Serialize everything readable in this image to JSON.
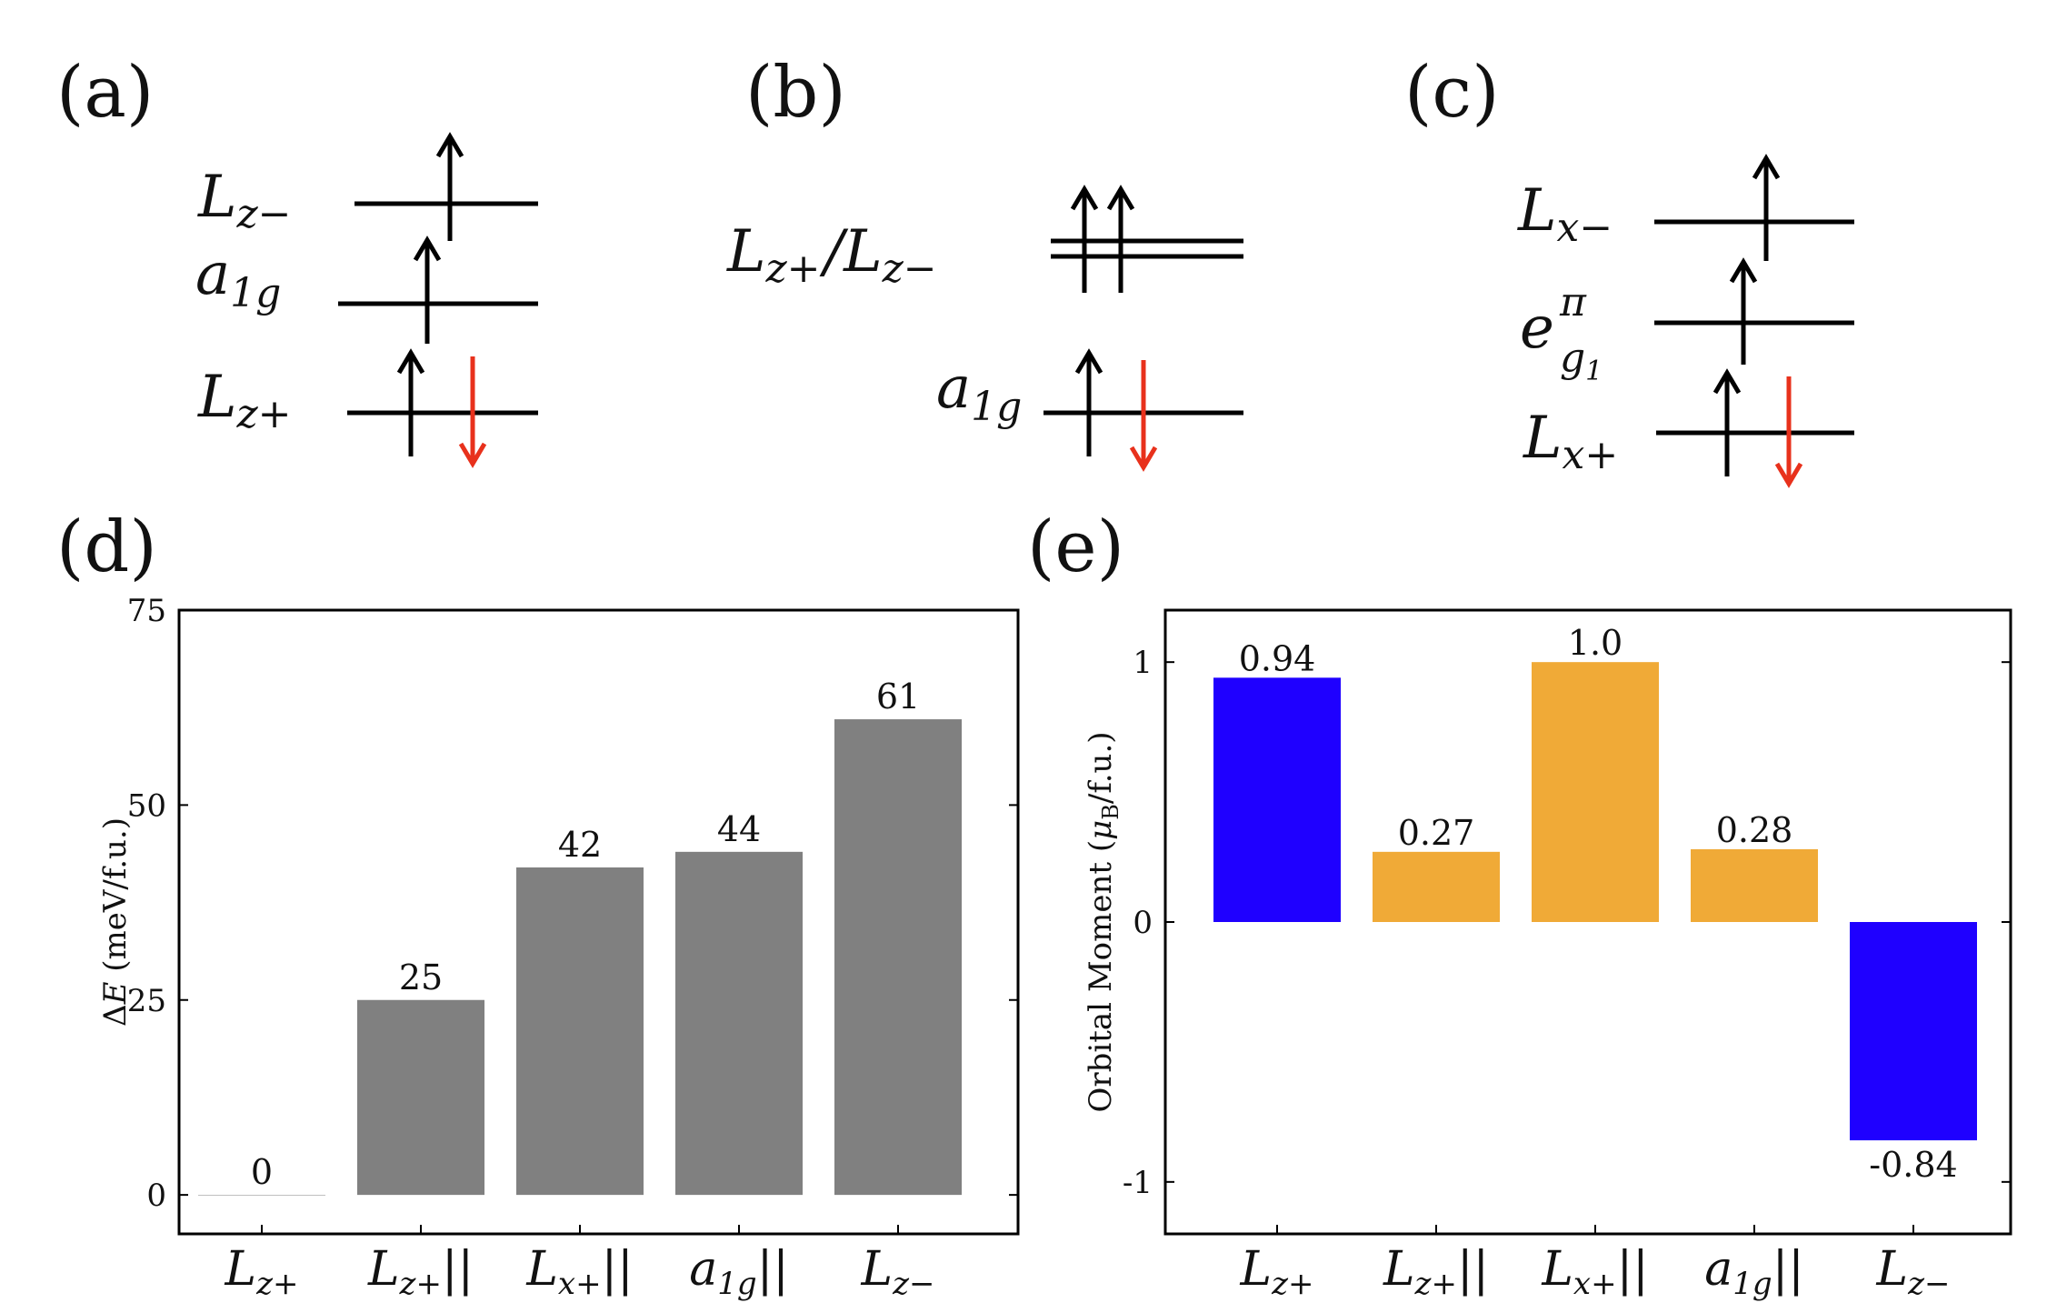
{
  "panels": {
    "a": "(a)",
    "b": "(b)",
    "c": "(c)",
    "d": "(d)",
    "e": "(e)"
  },
  "level_diagrams": {
    "a": {
      "levels": [
        {
          "main": "L",
          "sub": "z−",
          "electrons": "up"
        },
        {
          "main": "a",
          "sub": "1g",
          "electrons": "up"
        },
        {
          "main": "L",
          "sub": "z+",
          "electrons": "up-down"
        }
      ]
    },
    "b": {
      "levels": [
        {
          "main": "L",
          "sub": "z+",
          "sep": "/",
          "main2": "L",
          "sub2": "z−",
          "electrons": "up-up",
          "degenerate": true
        },
        {
          "main": "a",
          "sub": "1g",
          "electrons": "up-down"
        }
      ]
    },
    "c": {
      "levels": [
        {
          "main": "L",
          "sub": "x−",
          "electrons": "up"
        },
        {
          "main": "e",
          "sup": "π",
          "sub": "g",
          "subsub": "1",
          "electrons": "up"
        },
        {
          "main": "L",
          "sub": "x+",
          "electrons": "up-down"
        }
      ]
    }
  },
  "colors": {
    "gray_bar": "#808080",
    "blue_bar": "#1f00ff",
    "orange_bar": "#f0aa37",
    "down_arrow": "#e8311c",
    "up_arrow": "#000000"
  },
  "chart_data": [
    {
      "id": "d",
      "type": "bar",
      "categories": [
        {
          "main": "L",
          "sub": "z+",
          "suffix": ""
        },
        {
          "main": "L",
          "sub": "z+",
          "suffix": "||"
        },
        {
          "main": "L",
          "sub": "x+",
          "suffix": "||"
        },
        {
          "main": "a",
          "sub": "1g",
          "suffix": "||"
        },
        {
          "main": "L",
          "sub": "z−",
          "suffix": ""
        }
      ],
      "values": [
        0,
        25,
        42,
        44,
        61
      ],
      "labels": [
        "0",
        "25",
        "42",
        "44",
        "61"
      ],
      "bar_colors": [
        "gray",
        "gray",
        "gray",
        "gray",
        "gray"
      ],
      "ylabel_prefix": "Δ",
      "ylabel_var": "E",
      "ylabel_rest": " (meV/f.u.)",
      "ylim": [
        -5,
        75
      ],
      "yticks": [
        0,
        25,
        50,
        75
      ],
      "ytick_labels": [
        "0",
        "25",
        "50",
        "75"
      ]
    },
    {
      "id": "e",
      "type": "bar",
      "categories": [
        {
          "main": "L",
          "sub": "z+",
          "suffix": ""
        },
        {
          "main": "L",
          "sub": "z+",
          "suffix": "||"
        },
        {
          "main": "L",
          "sub": "x+",
          "suffix": "||"
        },
        {
          "main": "a",
          "sub": "1g",
          "suffix": "||"
        },
        {
          "main": "L",
          "sub": "z−",
          "suffix": ""
        }
      ],
      "values": [
        0.94,
        0.27,
        1.0,
        0.28,
        -0.84
      ],
      "labels": [
        "0.94",
        "0.27",
        "1.0",
        "0.28",
        "-0.84"
      ],
      "bar_colors": [
        "blue",
        "orange",
        "orange",
        "orange",
        "blue"
      ],
      "ylabel_prefix": "Orbital Moment (",
      "ylabel_var": "μ",
      "ylabel_sub": "B",
      "ylabel_rest": "/f.u.)",
      "ylim": [
        -1.2,
        1.2
      ],
      "yticks": [
        -1,
        0,
        1
      ],
      "ytick_labels": [
        "-1",
        "0",
        "1"
      ]
    }
  ]
}
